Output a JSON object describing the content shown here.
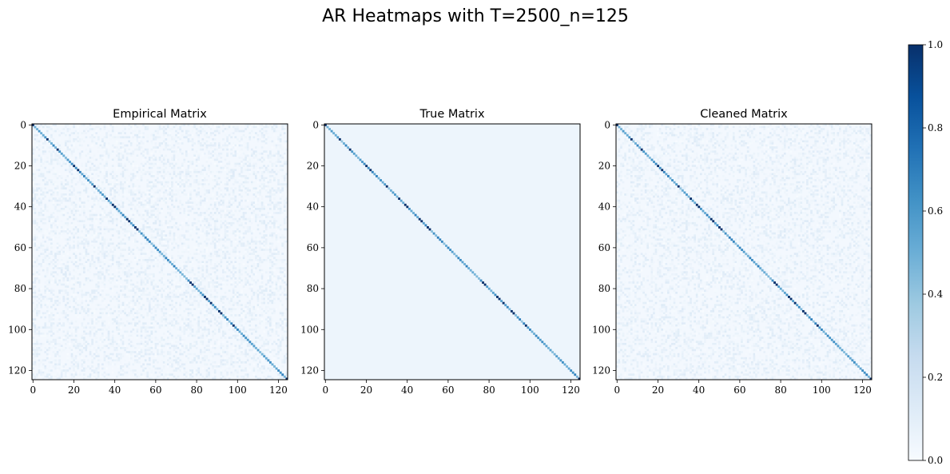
{
  "figure": {
    "suptitle": "AR Heatmaps with T=2500_n=125"
  },
  "chart_data": [
    {
      "type": "heatmap",
      "title": "Empirical Matrix",
      "n": 125,
      "x_ticks": [
        "0",
        "20",
        "40",
        "60",
        "80",
        "100",
        "120"
      ],
      "y_ticks": [
        "0",
        "20",
        "40",
        "60",
        "80",
        "100",
        "120"
      ],
      "xlim": [
        0,
        124
      ],
      "ylim": [
        124,
        0
      ],
      "colormap": "Blues",
      "vmin": 0.0,
      "vmax": 1.0,
      "diagonal": {
        "base_value": 0.55,
        "high_value_indices": [
          0,
          7,
          12,
          20,
          22,
          30,
          36,
          39,
          40,
          46,
          47,
          50,
          51,
          77,
          78,
          84,
          85,
          87,
          91,
          92,
          98,
          124
        ],
        "high_value": 1.0
      },
      "off_diagonal_noise": "low (about 0.0-0.15)"
    },
    {
      "type": "heatmap",
      "title": "True Matrix",
      "n": 125,
      "x_ticks": [
        "0",
        "20",
        "40",
        "60",
        "80",
        "100",
        "120"
      ],
      "y_ticks": [
        "0",
        "20",
        "40",
        "60",
        "80",
        "100",
        "120"
      ],
      "xlim": [
        0,
        124
      ],
      "ylim": [
        124,
        0
      ],
      "colormap": "Blues",
      "vmin": 0.0,
      "vmax": 1.0,
      "diagonal": {
        "base_value": 0.55,
        "high_value_indices": [
          0,
          7,
          12,
          20,
          22,
          30,
          36,
          39,
          40,
          46,
          47,
          50,
          51,
          77,
          78,
          84,
          85,
          87,
          91,
          92,
          98,
          124
        ],
        "high_value": 1.0
      },
      "off_diagonal_noise": "uniform, about 0.05"
    },
    {
      "type": "heatmap",
      "title": "Cleaned Matrix",
      "n": 125,
      "x_ticks": [
        "0",
        "20",
        "40",
        "60",
        "80",
        "100",
        "120"
      ],
      "y_ticks": [
        "0",
        "20",
        "40",
        "60",
        "80",
        "100",
        "120"
      ],
      "xlim": [
        0,
        124
      ],
      "ylim": [
        124,
        0
      ],
      "colormap": "Blues",
      "vmin": 0.0,
      "vmax": 1.0,
      "diagonal": {
        "base_value": 0.55,
        "high_value_indices": [
          0,
          7,
          12,
          20,
          22,
          30,
          36,
          39,
          40,
          46,
          47,
          50,
          51,
          77,
          78,
          84,
          85,
          87,
          91,
          92,
          98,
          124
        ],
        "high_value": 1.0
      },
      "off_diagonal_noise": "low (about 0.0-0.15)"
    }
  ],
  "colorbar": {
    "ticks": [
      "0.0",
      "0.2",
      "0.4",
      "0.6",
      "0.8",
      "1.0"
    ],
    "colormap": "Blues",
    "colors": {
      "low": "#f7fbff",
      "high": "#08306b"
    }
  }
}
